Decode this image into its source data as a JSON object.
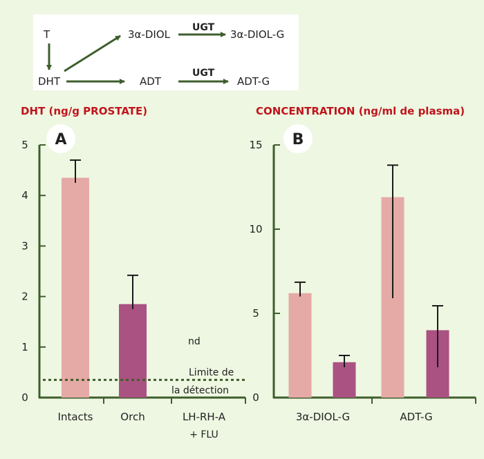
{
  "scheme": {
    "T": "T",
    "DHT": "DHT",
    "diol": "3α-DIOL",
    "diol_g": "3α-DIOL-G",
    "adt": "ADT",
    "adt_g": "ADT-G",
    "ugt1": "UGT",
    "ugt2": "UGT"
  },
  "panel_a": {
    "badge": "A",
    "title": "DHT (ng/g PROSTATE)",
    "nd": "nd",
    "limit_line1": "Limite de",
    "limit_line2": "la détection",
    "x_extra": "+ FLU"
  },
  "panel_b": {
    "badge": "B",
    "title": "CONCENTRATION (ng/ml de plasma)"
  },
  "colors": {
    "background": "#eef7e2",
    "light_bar": "#e5aaa6",
    "dark_bar": "#aa5282",
    "axis": "#3d5e2c",
    "title": "#c0141c",
    "dotted": "#3d5e2c"
  },
  "chart_data": [
    {
      "type": "bar",
      "title": "DHT (ng/g PROSTATE)",
      "categories": [
        "Intacts",
        "Orch",
        "LH-RH-A"
      ],
      "values": [
        4.35,
        1.85,
        null
      ],
      "errors_upper": [
        0.35,
        0.57,
        null
      ],
      "errors_lower": [
        0.1,
        0.1,
        null
      ],
      "bar_colors": [
        "light",
        "dark",
        null
      ],
      "ylim": [
        0,
        5
      ],
      "yticks": [
        0,
        1,
        2,
        3,
        4,
        5
      ],
      "detection_limit": 0.35,
      "annotations": [
        "nd",
        "Limite de",
        "la détection"
      ]
    },
    {
      "type": "bar",
      "title": "CONCENTRATION (ng/ml de plasma)",
      "categories": [
        "3α-DIOL-G",
        "ADT-G"
      ],
      "bars": [
        {
          "category": "3α-DIOL-G",
          "value": 6.2,
          "error_upper": 0.65,
          "error_lower": 0.2,
          "color": "light"
        },
        {
          "category": "3α-DIOL-G",
          "value": 2.1,
          "error_upper": 0.4,
          "error_lower": 0.3,
          "color": "dark"
        },
        {
          "category": "ADT-G",
          "value": 11.9,
          "error_upper": 1.9,
          "error_lower": 6.0,
          "color": "light"
        },
        {
          "category": "ADT-G",
          "value": 4.0,
          "error_upper": 1.45,
          "error_lower": 2.2,
          "color": "dark"
        }
      ],
      "ylim": [
        0,
        15
      ],
      "yticks": [
        0,
        5,
        10,
        15
      ]
    }
  ]
}
